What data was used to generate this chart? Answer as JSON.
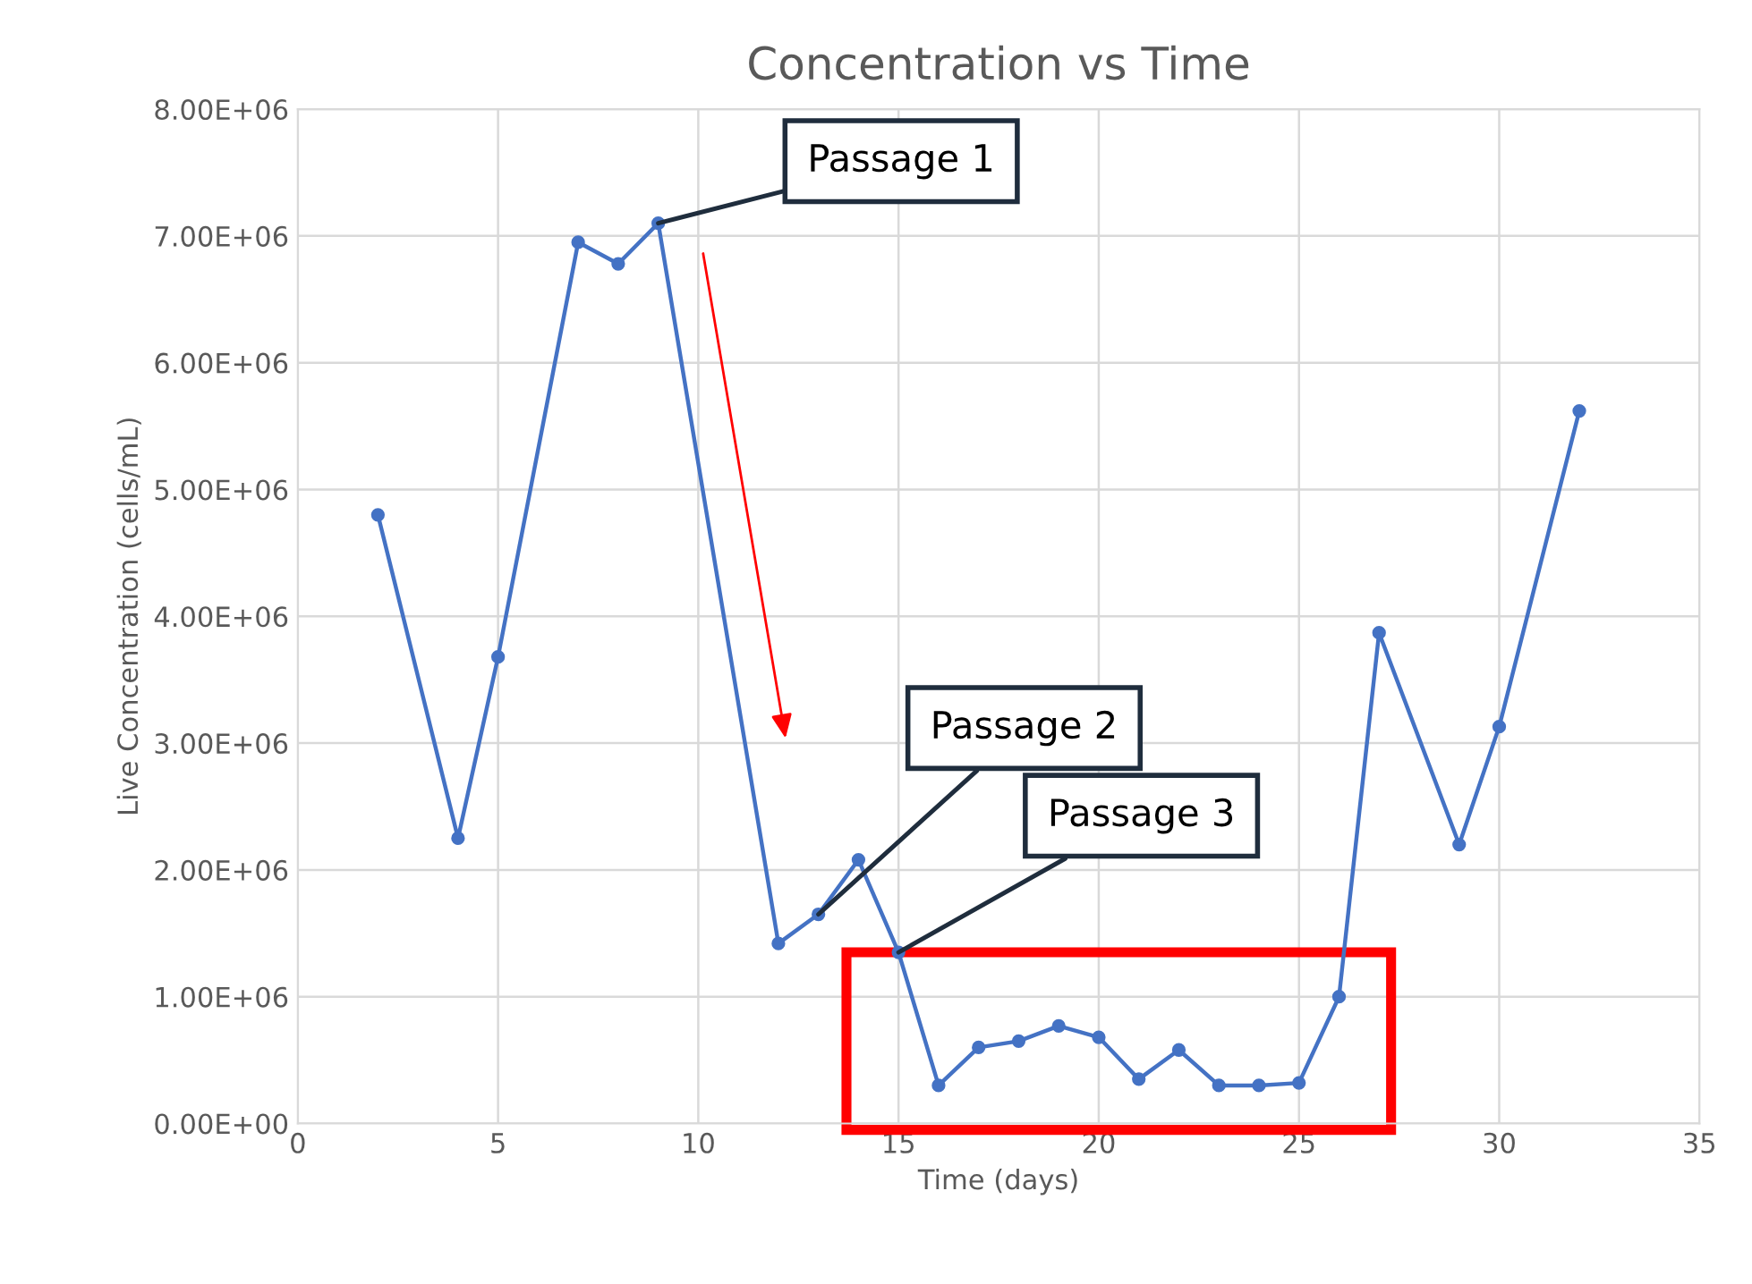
{
  "chart_data": {
    "type": "line",
    "title": "Concentration vs Time",
    "xlabel": "Time (days)",
    "ylabel": "Live Concentration (cells/mL)",
    "x": [
      2,
      4,
      5,
      7,
      8,
      9,
      12,
      13,
      14,
      15,
      16,
      17,
      18,
      19,
      20,
      21,
      22,
      23,
      24,
      25,
      26,
      27,
      29,
      30,
      32
    ],
    "series": [
      {
        "color": "#4472c4",
        "values": [
          4800000,
          2250000,
          3680000,
          6950000,
          6780000,
          7100000,
          1420000,
          1650000,
          2080000,
          1350000,
          300000,
          600000,
          650000,
          770000,
          680000,
          350000,
          580000,
          300000,
          300000,
          320000,
          1000000,
          3870000,
          2200000,
          3130000,
          5620000
        ]
      }
    ],
    "xlim": [
      0,
      35
    ],
    "xticks": [
      0,
      5,
      10,
      15,
      20,
      25,
      30,
      35
    ],
    "ylim": [
      0,
      8000000
    ],
    "yticks": [
      {
        "value": 0,
        "label": "0.00E+00"
      },
      {
        "value": 1000000,
        "label": "1.00E+06"
      },
      {
        "value": 2000000,
        "label": "2.00E+06"
      },
      {
        "value": 3000000,
        "label": "3.00E+06"
      },
      {
        "value": 4000000,
        "label": "4.00E+06"
      },
      {
        "value": 5000000,
        "label": "5.00E+06"
      },
      {
        "value": 6000000,
        "label": "6.00E+06"
      },
      {
        "value": 7000000,
        "label": "7.00E+06"
      },
      {
        "value": 8000000,
        "label": "8.00E+06"
      }
    ],
    "grid": true,
    "marker": "circle",
    "line_style": "solid",
    "legend": false,
    "annotations": [
      {
        "text": "Passage 1",
        "x": 9,
        "y": 7100000
      },
      {
        "text": "Passage 2",
        "x": 13,
        "y": 1650000
      },
      {
        "text": "Passage 3",
        "x": 15,
        "y": 1350000
      }
    ]
  }
}
